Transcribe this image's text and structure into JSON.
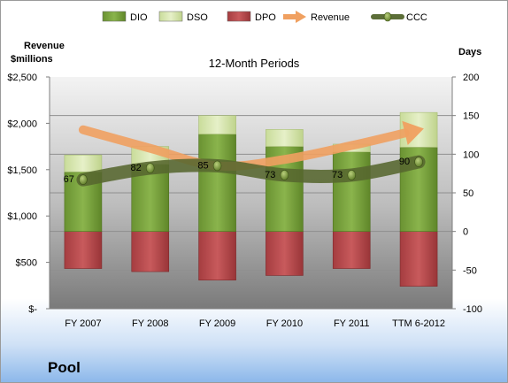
{
  "company": "Pool",
  "chart_data": {
    "type": "bar",
    "title": "12-Month Periods",
    "categories": [
      "FY 2007",
      "FY 2008",
      "FY 2009",
      "FY 2010",
      "FY 2011",
      "TTM 6-2012"
    ],
    "y_left": {
      "label_line1": "Revenue",
      "label_line2": "$millions",
      "ticks": [
        "$-",
        "$500",
        "$1,000",
        "$1,500",
        "$2,000",
        "$2,500"
      ],
      "range": [
        0,
        2500
      ]
    },
    "y_right": {
      "label": "Days",
      "ticks": [
        "-100",
        "-50",
        "0",
        "50",
        "100",
        "150",
        "200"
      ],
      "range": [
        -100,
        200
      ]
    },
    "legend": {
      "position": "top",
      "items": [
        {
          "name": "DIO",
          "kind": "bar",
          "color": "#77a03e"
        },
        {
          "name": "DSO",
          "kind": "bar",
          "color": "#d8e8b0"
        },
        {
          "name": "DPO",
          "kind": "bar",
          "color": "#b94a4c"
        },
        {
          "name": "Revenue",
          "kind": "arrow",
          "color": "#f0a060"
        },
        {
          "name": "CCC",
          "kind": "line",
          "color": "#5c6e38"
        }
      ]
    },
    "series": [
      {
        "name": "DIO",
        "axis": "right",
        "values": [
          77,
          87,
          126,
          110,
          103,
          109
        ]
      },
      {
        "name": "DSO",
        "axis": "right",
        "values": [
          22,
          23,
          24,
          22,
          10,
          45
        ]
      },
      {
        "name": "DPO",
        "axis": "right",
        "values": [
          -48,
          -52,
          -63,
          -57,
          -48,
          -71
        ]
      },
      {
        "name": "Revenue",
        "axis": "left",
        "values": [
          1930,
          1730,
          1540,
          1610,
          1760,
          1930
        ]
      },
      {
        "name": "CCC",
        "axis": "right",
        "values": [
          67,
          82,
          85,
          73,
          73,
          90
        ],
        "data_labels": [
          "67",
          "82",
          "85",
          "73",
          "73",
          "90"
        ]
      }
    ]
  }
}
